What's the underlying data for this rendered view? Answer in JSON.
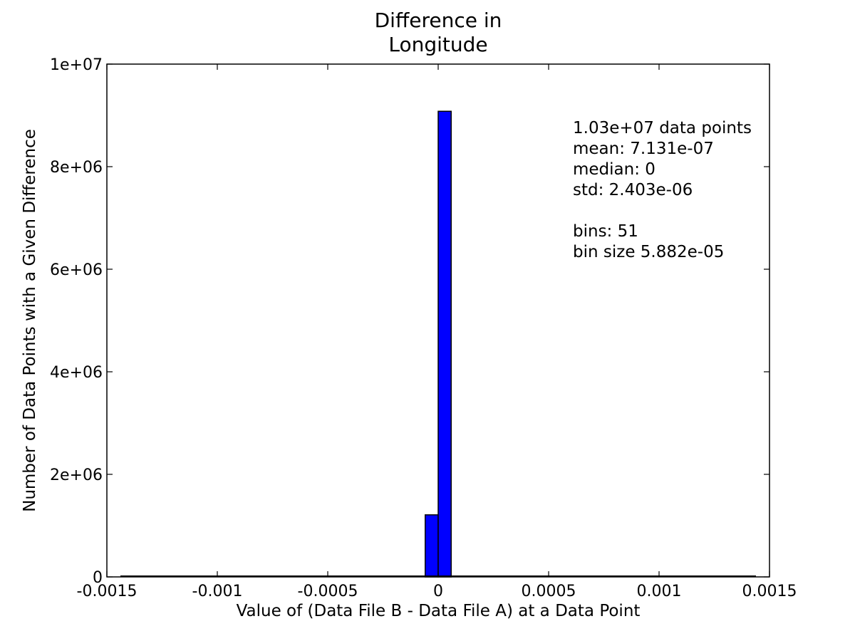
{
  "chart_data": {
    "type": "bar",
    "title_lines": [
      "Difference in",
      "Longitude"
    ],
    "xlabel": "Value of (Data File B - Data File A) at a Data Point",
    "ylabel": "Number of Data Points with a Given Difference",
    "xlim": [
      -0.0015,
      0.0015
    ],
    "ylim": [
      0,
      10000000
    ],
    "x_ticks": [
      {
        "value": -0.0015,
        "label": "-0.0015"
      },
      {
        "value": -0.001,
        "label": "-0.001"
      },
      {
        "value": -0.0005,
        "label": "-0.0005"
      },
      {
        "value": 0,
        "label": "0"
      },
      {
        "value": 0.0005,
        "label": "0.0005"
      },
      {
        "value": 0.001,
        "label": "0.001"
      },
      {
        "value": 0.0015,
        "label": "0.0015"
      }
    ],
    "y_ticks": [
      {
        "value": 0,
        "label": "0"
      },
      {
        "value": 2000000,
        "label": "2e+06"
      },
      {
        "value": 4000000,
        "label": "4e+06"
      },
      {
        "value": 6000000,
        "label": "6e+06"
      },
      {
        "value": 8000000,
        "label": "8e+06"
      },
      {
        "value": 10000000,
        "label": "1e+07"
      }
    ],
    "bins": [
      {
        "start": -5.882e-05,
        "end": 0,
        "count": 1210000
      },
      {
        "start": 0,
        "end": 5.882e-05,
        "count": 9080000
      }
    ],
    "data_range": [
      -0.0015,
      0.0015
    ],
    "bar_color": "#0000ff",
    "grid": false,
    "stats_lines": [
      "1.03e+07 data points",
      "mean: 7.131e-07",
      "median: 0",
      "std: 2.403e-06",
      "",
      "bins: 51",
      "bin size 5.882e-05"
    ]
  }
}
